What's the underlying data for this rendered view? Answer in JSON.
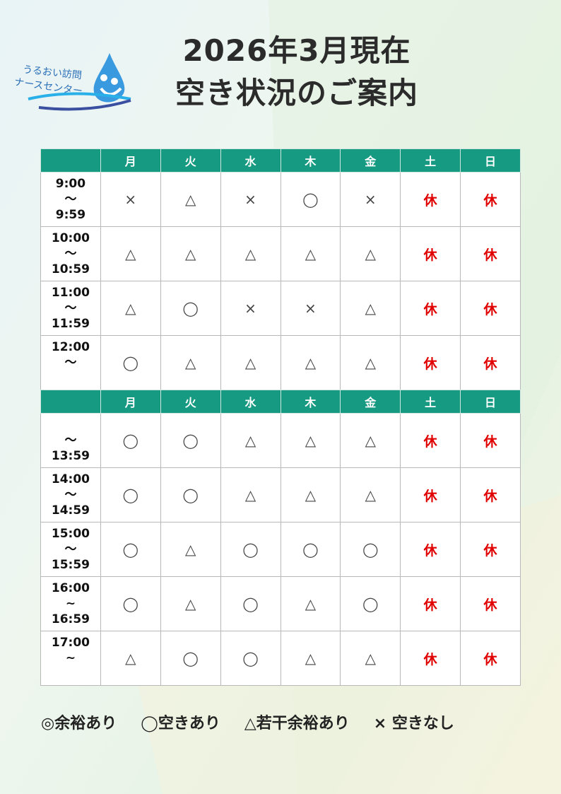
{
  "logo": {
    "line1": "うるおい訪問",
    "line2": "ナースセンター"
  },
  "title": {
    "line1": "2026年3月現在",
    "line2": "空き状況のご案内"
  },
  "days": [
    "月",
    "火",
    "水",
    "木",
    "金",
    "土",
    "日"
  ],
  "morning": [
    {
      "time": [
        "9:00",
        "〜",
        "9:59"
      ],
      "slots": [
        "×",
        "△",
        "×",
        "◯",
        "×",
        "休",
        "休"
      ]
    },
    {
      "time": [
        "10:00",
        "〜",
        "10:59"
      ],
      "slots": [
        "△",
        "△",
        "△",
        "△",
        "△",
        "休",
        "休"
      ]
    },
    {
      "time": [
        "11:00",
        "〜",
        "11:59"
      ],
      "slots": [
        "△",
        "◯",
        "×",
        "×",
        "△",
        "休",
        "休"
      ]
    },
    {
      "time": [
        "12:00",
        "〜",
        ""
      ],
      "slots": [
        "◯",
        "△",
        "△",
        "△",
        "△",
        "休",
        "休"
      ]
    }
  ],
  "afternoon": [
    {
      "time": [
        "",
        "〜",
        "13:59"
      ],
      "slots": [
        "◯",
        "◯",
        "△",
        "△",
        "△",
        "休",
        "休"
      ]
    },
    {
      "time": [
        "14:00",
        "〜",
        "14:59"
      ],
      "slots": [
        "◯",
        "◯",
        "△",
        "△",
        "△",
        "休",
        "休"
      ]
    },
    {
      "time": [
        "15:00",
        "〜",
        "15:59"
      ],
      "slots": [
        "◯",
        "△",
        "◯",
        "◯",
        "◯",
        "休",
        "休"
      ]
    },
    {
      "time": [
        "16:00",
        "~",
        "16:59"
      ],
      "slots": [
        "◯",
        "△",
        "◯",
        "△",
        "◯",
        "休",
        "休"
      ]
    },
    {
      "time": [
        "17:00",
        "~",
        ""
      ],
      "slots": [
        "△",
        "◯",
        "◯",
        "△",
        "△",
        "休",
        "休"
      ]
    }
  ],
  "legend": [
    "◎余裕あり",
    "◯空きあり",
    "△若干余裕あり",
    "× 空きなし"
  ],
  "colors": {
    "header": "#179a82",
    "closed": "#e00000"
  }
}
